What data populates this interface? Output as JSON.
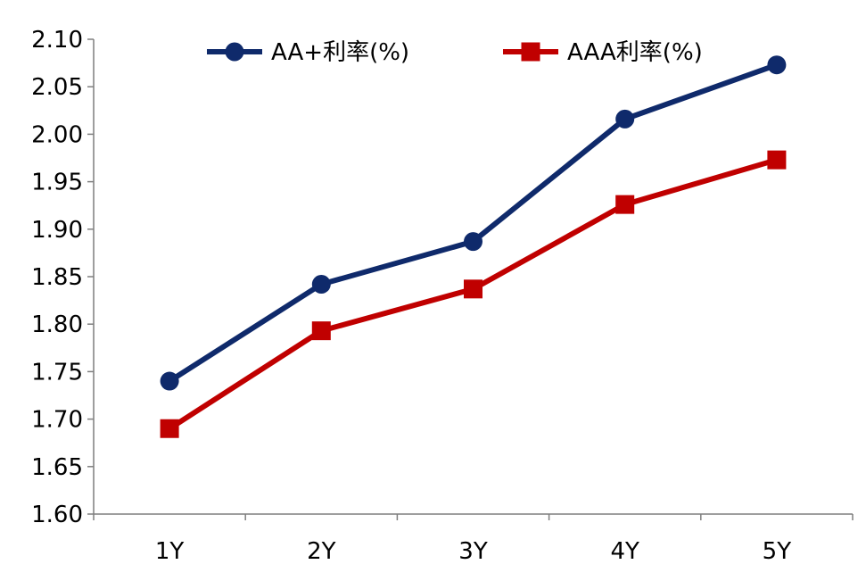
{
  "chart_data": {
    "type": "line",
    "title": "",
    "xlabel": "",
    "ylabel": "",
    "categories": [
      "1Y",
      "2Y",
      "3Y",
      "4Y",
      "5Y"
    ],
    "y_ticks": [
      "1.60",
      "1.65",
      "1.70",
      "1.75",
      "1.80",
      "1.85",
      "1.90",
      "1.95",
      "2.00",
      "2.05",
      "2.10"
    ],
    "ylim": [
      1.6,
      2.1
    ],
    "grid": false,
    "legend_position": "top",
    "series": [
      {
        "name": "AA+利率(%)",
        "values": [
          1.74,
          1.842,
          1.887,
          2.016,
          2.073
        ],
        "color": "#0f2a6b",
        "marker": "circle"
      },
      {
        "name": "AAA利率(%)",
        "values": [
          1.69,
          1.793,
          1.837,
          1.926,
          1.973
        ],
        "color": "#c00000",
        "marker": "square"
      }
    ]
  }
}
